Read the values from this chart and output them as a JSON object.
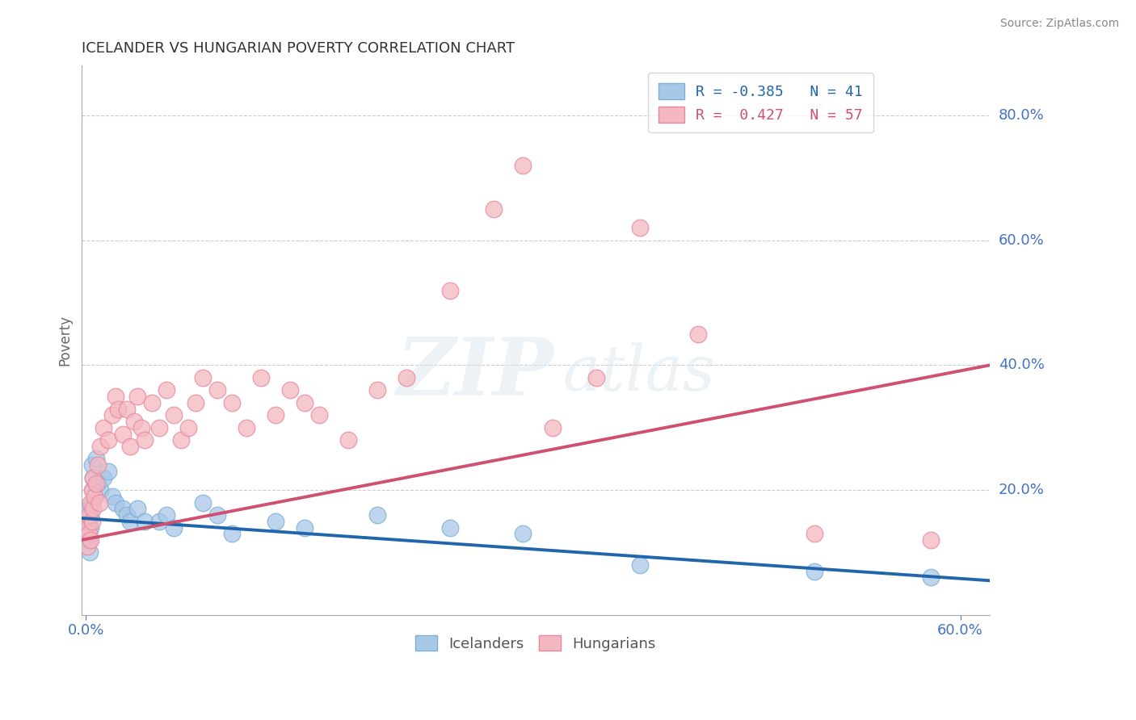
{
  "title": "ICELANDER VS HUNGARIAN POVERTY CORRELATION CHART",
  "source": "Source: ZipAtlas.com",
  "ylabel": "Poverty",
  "ylim": [
    0,
    0.88
  ],
  "xlim": [
    -0.003,
    0.62
  ],
  "yticks": [
    0.0,
    0.2,
    0.4,
    0.6,
    0.8
  ],
  "ytick_labels": [
    "",
    "20.0%",
    "40.0%",
    "60.0%",
    "80.0%"
  ],
  "icelander_color": "#a8c8e8",
  "hungarian_color": "#f4b8c0",
  "icelander_edge_color": "#7bafd4",
  "hungarian_edge_color": "#e888a0",
  "icelander_line_color": "#2166ac",
  "hungarian_line_color": "#d05070",
  "R_icelander": -0.385,
  "N_icelander": 41,
  "R_hungarian": 0.427,
  "N_hungarian": 57,
  "icelander_points": [
    [
      0.0005,
      0.155
    ],
    [
      0.001,
      0.16
    ],
    [
      0.001,
      0.13
    ],
    [
      0.0015,
      0.14
    ],
    [
      0.002,
      0.15
    ],
    [
      0.002,
      0.12
    ],
    [
      0.002,
      0.17
    ],
    [
      0.0025,
      0.1
    ],
    [
      0.003,
      0.16
    ],
    [
      0.003,
      0.14
    ],
    [
      0.004,
      0.24
    ],
    [
      0.004,
      0.18
    ],
    [
      0.005,
      0.22
    ],
    [
      0.005,
      0.2
    ],
    [
      0.006,
      0.19
    ],
    [
      0.007,
      0.25
    ],
    [
      0.008,
      0.21
    ],
    [
      0.01,
      0.2
    ],
    [
      0.012,
      0.22
    ],
    [
      0.015,
      0.23
    ],
    [
      0.018,
      0.19
    ],
    [
      0.02,
      0.18
    ],
    [
      0.025,
      0.17
    ],
    [
      0.028,
      0.16
    ],
    [
      0.03,
      0.15
    ],
    [
      0.035,
      0.17
    ],
    [
      0.04,
      0.15
    ],
    [
      0.05,
      0.15
    ],
    [
      0.055,
      0.16
    ],
    [
      0.06,
      0.14
    ],
    [
      0.08,
      0.18
    ],
    [
      0.09,
      0.16
    ],
    [
      0.1,
      0.13
    ],
    [
      0.13,
      0.15
    ],
    [
      0.15,
      0.14
    ],
    [
      0.2,
      0.16
    ],
    [
      0.25,
      0.14
    ],
    [
      0.3,
      0.13
    ],
    [
      0.38,
      0.08
    ],
    [
      0.5,
      0.07
    ],
    [
      0.58,
      0.06
    ]
  ],
  "hungarian_points": [
    [
      0.0005,
      0.135
    ],
    [
      0.001,
      0.155
    ],
    [
      0.001,
      0.11
    ],
    [
      0.0015,
      0.14
    ],
    [
      0.002,
      0.13
    ],
    [
      0.002,
      0.16
    ],
    [
      0.003,
      0.12
    ],
    [
      0.003,
      0.18
    ],
    [
      0.004,
      0.15
    ],
    [
      0.004,
      0.2
    ],
    [
      0.005,
      0.17
    ],
    [
      0.005,
      0.22
    ],
    [
      0.006,
      0.19
    ],
    [
      0.007,
      0.21
    ],
    [
      0.008,
      0.24
    ],
    [
      0.009,
      0.18
    ],
    [
      0.01,
      0.27
    ],
    [
      0.012,
      0.3
    ],
    [
      0.015,
      0.28
    ],
    [
      0.018,
      0.32
    ],
    [
      0.02,
      0.35
    ],
    [
      0.022,
      0.33
    ],
    [
      0.025,
      0.29
    ],
    [
      0.028,
      0.33
    ],
    [
      0.03,
      0.27
    ],
    [
      0.033,
      0.31
    ],
    [
      0.035,
      0.35
    ],
    [
      0.038,
      0.3
    ],
    [
      0.04,
      0.28
    ],
    [
      0.045,
      0.34
    ],
    [
      0.05,
      0.3
    ],
    [
      0.055,
      0.36
    ],
    [
      0.06,
      0.32
    ],
    [
      0.065,
      0.28
    ],
    [
      0.07,
      0.3
    ],
    [
      0.075,
      0.34
    ],
    [
      0.08,
      0.38
    ],
    [
      0.09,
      0.36
    ],
    [
      0.1,
      0.34
    ],
    [
      0.11,
      0.3
    ],
    [
      0.12,
      0.38
    ],
    [
      0.13,
      0.32
    ],
    [
      0.14,
      0.36
    ],
    [
      0.15,
      0.34
    ],
    [
      0.16,
      0.32
    ],
    [
      0.18,
      0.28
    ],
    [
      0.2,
      0.36
    ],
    [
      0.22,
      0.38
    ],
    [
      0.25,
      0.52
    ],
    [
      0.28,
      0.65
    ],
    [
      0.3,
      0.72
    ],
    [
      0.32,
      0.3
    ],
    [
      0.35,
      0.38
    ],
    [
      0.38,
      0.62
    ],
    [
      0.42,
      0.45
    ],
    [
      0.5,
      0.13
    ],
    [
      0.58,
      0.12
    ]
  ],
  "watermark_zip": "ZIP",
  "watermark_atlas": "atlas",
  "title_fontsize": 13,
  "legend_fontsize": 13,
  "axis_label_color": "#4472c4",
  "tick_color": "#4472c4",
  "grid_color": "#cccccc",
  "spine_color": "#aaaaaa"
}
